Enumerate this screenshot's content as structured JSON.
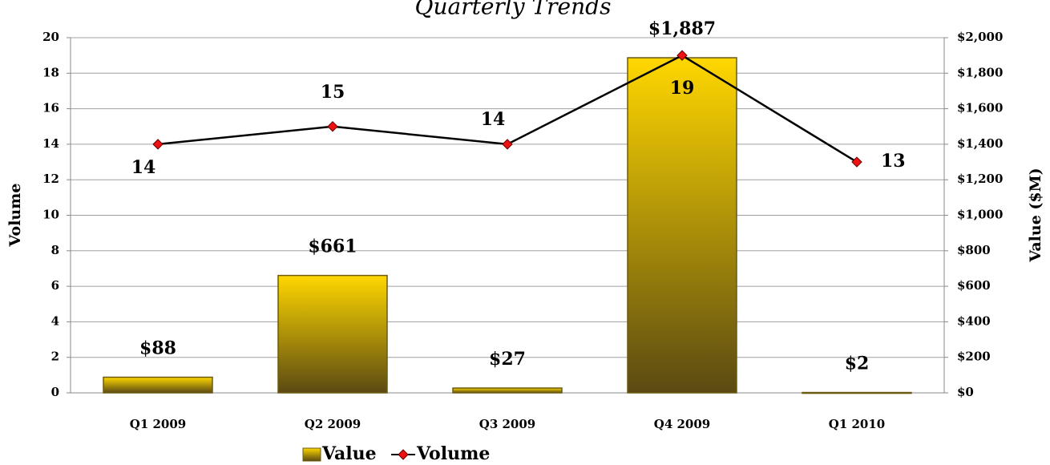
{
  "chart_data": {
    "type": "bar_line",
    "title": "Quarterly Trends",
    "y_label": "Volume",
    "y2_label": "Value ($M)",
    "categories": [
      "Q1 2009",
      "Q2 2009",
      "Q3 2009",
      "Q4 2009",
      "Q1 2010"
    ],
    "series": [
      {
        "name": "Value",
        "type": "bar",
        "axis": "y2",
        "color": "#ffd700",
        "values": [
          88,
          661,
          27,
          1887,
          2
        ],
        "value_labels": [
          "$88",
          "$661",
          "$27",
          "$1,887",
          "$2"
        ]
      },
      {
        "name": "Volume",
        "type": "line",
        "color": "#000000",
        "marker_color": "#ee1111",
        "values": [
          14,
          15,
          14,
          19,
          13
        ]
      }
    ],
    "ylim": [
      0,
      20
    ],
    "yticks": [
      0,
      2,
      4,
      6,
      8,
      10,
      12,
      14,
      16,
      18,
      20
    ],
    "y2lim": [
      0,
      2000
    ],
    "y2ticks": [
      {
        "value": 0,
        "label": "$0"
      },
      {
        "value": 200,
        "label": "$200"
      },
      {
        "value": 400,
        "label": "$400"
      },
      {
        "value": 600,
        "label": "$600"
      },
      {
        "value": 800,
        "label": "$800"
      },
      {
        "value": 1000,
        "label": "$1,000"
      },
      {
        "value": 1200,
        "label": "$1,200"
      },
      {
        "value": 1400,
        "label": "$1,400"
      },
      {
        "value": 1600,
        "label": "$1,600"
      },
      {
        "value": 1800,
        "label": "$1,800"
      },
      {
        "value": 2000,
        "label": "$2,000"
      }
    ],
    "grid": true,
    "legend": "bottom"
  }
}
